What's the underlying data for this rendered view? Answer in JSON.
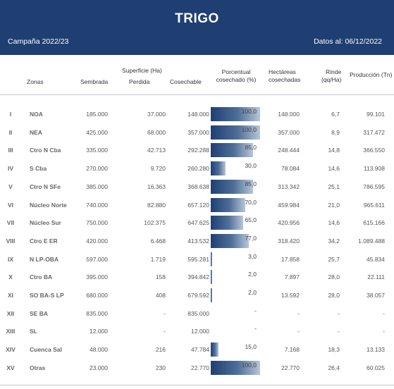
{
  "header": {
    "title": "TRIGO",
    "campaign": "Campaña 2022/23",
    "date": "Datos al: 06/12/2022"
  },
  "columns": {
    "zonas": "Zonas",
    "superficie": "Superficie (Ha)",
    "sembrada": "Sembrada",
    "perdida": "Perdida",
    "cosechable": "Cosechable",
    "porcentual_1": "Porcentual",
    "porcentual_2": "cosechado (%)",
    "hectareas_1": "Hectáreas",
    "hectareas_2": "cosechadas",
    "rinde_1": "Rinde",
    "rinde_2": "(qq/Ha)",
    "produccion": "Producción (Tn)"
  },
  "rows": [
    {
      "roman": "I",
      "zona": "NOA",
      "sembrada": "185.000",
      "perdida": "37.000",
      "cosechable": "148.000",
      "pct": 100,
      "pct_label": "100,0",
      "hectareas": "148.000",
      "rinde": "6,7",
      "produccion": "99.101"
    },
    {
      "roman": "II",
      "zona": "NEA",
      "sembrada": "425.000",
      "perdida": "68.000",
      "cosechable": "357.000",
      "pct": 100,
      "pct_label": "100,0",
      "hectareas": "357.000",
      "rinde": "8,9",
      "produccion": "317.472"
    },
    {
      "roman": "III",
      "zona": "Ctro N Cba",
      "sembrada": "335.000",
      "perdida": "42.713",
      "cosechable": "292.288",
      "pct": 85,
      "pct_label": "85,0",
      "hectareas": "248.444",
      "rinde": "14,8",
      "produccion": "366.550"
    },
    {
      "roman": "IV",
      "zona": "S Cba",
      "sembrada": "270.000",
      "perdida": "9.720",
      "cosechable": "260.280",
      "pct": 30,
      "pct_label": "30,0",
      "hectareas": "78.084",
      "rinde": "14,6",
      "produccion": "113.908"
    },
    {
      "roman": "V",
      "zona": "Ctro N SFe",
      "sembrada": "385.000",
      "perdida": "16.363",
      "cosechable": "368.638",
      "pct": 85,
      "pct_label": "85,0",
      "hectareas": "313.342",
      "rinde": "25,1",
      "produccion": "786.595"
    },
    {
      "roman": "VI",
      "zona": "Núcleo Norte",
      "sembrada": "740.000",
      "perdida": "82.880",
      "cosechable": "657.120",
      "pct": 70,
      "pct_label": "70,0",
      "hectareas": "459.984",
      "rinde": "21,0",
      "produccion": "965.611"
    },
    {
      "roman": "VII",
      "zona": "Núcleo Sur",
      "sembrada": "750.000",
      "perdida": "102.375",
      "cosechable": "647.625",
      "pct": 65,
      "pct_label": "65,0",
      "hectareas": "420.956",
      "rinde": "14,6",
      "produccion": "615.166"
    },
    {
      "roman": "VIII",
      "zona": "Ctro E ER",
      "sembrada": "420.000",
      "perdida": "6.468",
      "cosechable": "413.532",
      "pct": 77,
      "pct_label": "77,0",
      "hectareas": "318.420",
      "rinde": "34,2",
      "produccion": "1.089.488"
    },
    {
      "roman": "IX",
      "zona": "N LP-OBA",
      "sembrada": "597.000",
      "perdida": "1.719",
      "cosechable": "595.281",
      "pct": 3,
      "pct_label": "3,0",
      "hectareas": "17.858",
      "rinde": "25,7",
      "produccion": "45.834"
    },
    {
      "roman": "X",
      "zona": "Ctro BA",
      "sembrada": "395.000",
      "perdida": "158",
      "cosechable": "394.842",
      "pct": 2,
      "pct_label": "2,0",
      "hectareas": "7.897",
      "rinde": "28,0",
      "produccion": "22.111"
    },
    {
      "roman": "XI",
      "zona": "SO BA-S LP",
      "sembrada": "680.000",
      "perdida": "408",
      "cosechable": "679.592",
      "pct": 2,
      "pct_label": "2,0",
      "hectareas": "13.592",
      "rinde": "28,0",
      "produccion": "38.057"
    },
    {
      "roman": "XII",
      "zona": "SE BA",
      "sembrada": "835.000",
      "perdida": "-",
      "cosechable": "835.000",
      "pct": 0,
      "pct_label": "-",
      "hectareas": "-",
      "rinde": "-",
      "produccion": "-"
    },
    {
      "roman": "XIII",
      "zona": "SL",
      "sembrada": "12.000",
      "perdida": "-",
      "cosechable": "12.000",
      "pct": 0,
      "pct_label": "-",
      "hectareas": "-",
      "rinde": "-",
      "produccion": "-"
    },
    {
      "roman": "XIV",
      "zona": "Cuenca Sal",
      "sembrada": "48.000",
      "perdida": "216",
      "cosechable": "47.784",
      "pct": 15,
      "pct_label": "15,0",
      "hectareas": "7.168",
      "rinde": "18,3",
      "produccion": "13.133"
    },
    {
      "roman": "XV",
      "zona": "Otras",
      "sembrada": "23.000",
      "perdida": "230",
      "cosechable": "22.770",
      "pct": 100,
      "pct_label": "100,0",
      "hectareas": "22.770",
      "rinde": "26,4",
      "produccion": "60.025"
    }
  ]
}
